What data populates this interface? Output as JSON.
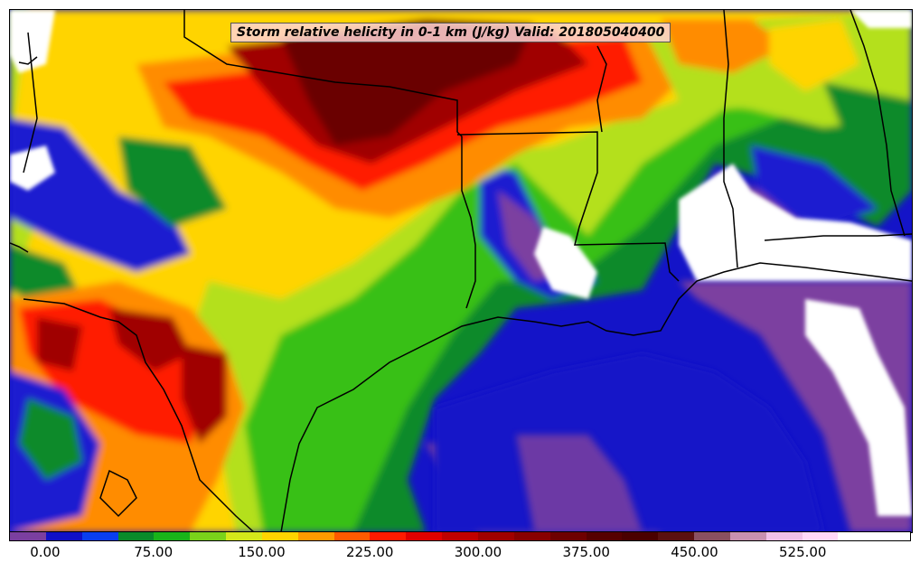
{
  "title": "Storm relative helicity in 0-1 km (J/kg) Valid: 201805040400",
  "colorbar": {
    "colors": [
      "#7b3fa0",
      "#1010c8",
      "#0a3ef0",
      "#0a8a2a",
      "#19b419",
      "#7ad21a",
      "#d4e81a",
      "#ffd400",
      "#ff9a00",
      "#ff5a00",
      "#ff1a00",
      "#e00000",
      "#c00000",
      "#a00000",
      "#880000",
      "#6e0000",
      "#560000",
      "#4a0000",
      "#5a1010",
      "#8a5060",
      "#c890b0",
      "#f0c0e8",
      "#ffd8f8",
      "#ffffff",
      "#ffffff"
    ],
    "tick_labels": [
      "0.00",
      "75.00",
      "150.00",
      "225.00",
      "300.00",
      "375.00",
      "450.00",
      "525.00"
    ],
    "tick_values": [
      0,
      75,
      150,
      225,
      300,
      375,
      450,
      525
    ],
    "range": [
      -25,
      600
    ]
  },
  "palette": {
    "gulf": "#1414c8",
    "purple": "#7b3fa0",
    "blue": "#1a1ad0",
    "darkgreen": "#0a8a2a",
    "green": "#38c018",
    "lime": "#b4e01a",
    "yellow": "#ffd400",
    "orange": "#ff8c00",
    "red": "#ff1a00",
    "darkred": "#a00000",
    "maroon": "#6a0000",
    "white": "#ffffff"
  }
}
